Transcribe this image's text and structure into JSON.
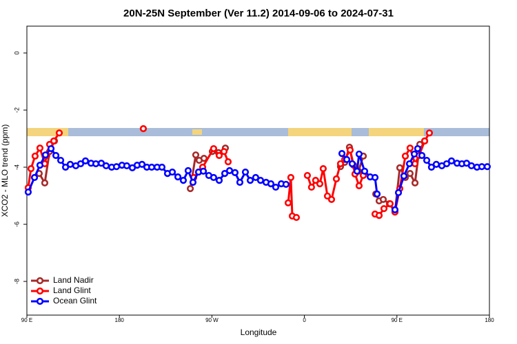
{
  "chart_data": {
    "type": "line",
    "title": "20N-25N September (Ver 11.2)   2014-09-06 to 2024-07-31",
    "x_label": "Longitude",
    "y_label": "XCO2 - MLO trend (ppm)",
    "xlim": [
      90,
      540
    ],
    "xticks": [
      {
        "value": 90,
        "label": "90 E"
      },
      180,
      {
        "value": 270,
        "label": "90 W"
      },
      {
        "value": 360,
        "label": "0"
      },
      {
        "value": 450,
        "label": "90 E"
      },
      {
        "value": 540,
        "label": "180"
      }
    ],
    "ylim": [
      -9.18,
      0.94
    ],
    "yticks": [
      0,
      -2,
      -4,
      -6,
      -8
    ],
    "grid": false,
    "legend": "bottom left",
    "series": [
      {
        "name": "Land Nadir",
        "color": "#a52a2a",
        "x": [
          102,
          107.4,
          112.1,
          116.8,
          null,
          249,
          254.3,
          257.6,
          262.3,
          null,
          270.4,
          276.4,
          283.1,
          null,
          395.1,
          399.2,
          403.8,
          407.9,
          412.6,
          417.3,
          null,
          429.4,
          432.7,
          436.7,
          442.7,
          448.1,
          452.8,
          458.2,
          462.8,
          467.6,
          472.3,
          477
        ],
        "values": [
          -4.22,
          -4.55,
          -3.45,
          -3.08,
          null,
          -4.75,
          -3.57,
          -3.76,
          -3.69,
          null,
          -3.45,
          -3.49,
          -3.33,
          null,
          -3.98,
          -3.83,
          -3.3,
          -3.93,
          -4.14,
          -3.61,
          null,
          -4.94,
          -5.18,
          -5.13,
          -5.28,
          -5.57,
          -4.02,
          -4.36,
          -4.22,
          -4.55,
          -3.2,
          -3.08
        ]
      },
      {
        "name": "Land Glint",
        "color": "#ff0000",
        "x": [
          91.3,
          94,
          98,
          102.7,
          107.4,
          109.4,
          112.1,
          116.2,
          121.5,
          null,
          203.3,
          null,
          252.3,
          257,
          261,
          271.7,
          277.1,
          281.8,
          285.8,
          null,
          344.2,
          346.8,
          348.2,
          352.2,
          null,
          362.9,
          366.9,
          370.9,
          375,
          378.3,
          382.4,
          386.4,
          391.1,
          395.1,
          399.2,
          404.5,
          409.2,
          413.2,
          417.3,
          null,
          428.7,
          432.7,
          437.4,
          443.4,
          448.1,
          452.8,
          458.2,
          462.8,
          467.6,
          471.6,
          477,
          481.6
        ],
        "values": [
          -4.72,
          -4.05,
          -3.61,
          -3.33,
          -3.88,
          -3.59,
          -3.2,
          -3.08,
          -2.8,
          null,
          -2.65,
          null,
          -4.36,
          -4.17,
          -4.0,
          -3.35,
          -3.59,
          -3.45,
          -3.81,
          null,
          -5.25,
          -4.36,
          -5.71,
          -5.76,
          null,
          -4.29,
          -4.7,
          -4.46,
          -4.58,
          -4.05,
          -5.01,
          -5.13,
          -4.41,
          -3.88,
          -3.73,
          -3.4,
          -4.24,
          -4.65,
          -4.29,
          null,
          -5.64,
          -5.69,
          -5.45,
          -5.28,
          -5.57,
          -4.75,
          -3.61,
          -3.33,
          -3.88,
          -3.59,
          -3.08,
          -2.8
        ]
      },
      {
        "name": "Ocean Glint",
        "color": "#0000ff",
        "x": [
          91.3,
          97.4,
          102.7,
          108.1,
          113.5,
          118.2,
          122.9,
          127.6,
          132.2,
          137.6,
          142.3,
          147,
          152.4,
          157.1,
          162.4,
          167.1,
          172.5,
          177.2,
          182.5,
          187.2,
          192.6,
          197.3,
          202,
          206.7,
          211.4,
          216.7,
          221.4,
          226.8,
          231.5,
          236.9,
          242.2,
          246.9,
          251.6,
          257,
          261.7,
          267,
          271.7,
          277.1,
          282.5,
          287.2,
          292.5,
          297.2,
          302.6,
          307.3,
          312.6,
          317.3,
          322.7,
          327.4,
          332.1,
          337.5,
          342.1,
          null,
          396.5,
          401.2,
          406.5,
          411.2,
          413.2,
          418.6,
          424,
          428.7,
          430.7,
          null,
          448.1,
          451.5,
          456.8,
          462.2,
          466.9,
          470.2,
          474.3,
          479,
          483.6,
          488.3,
          493.7,
          498.4,
          503.1,
          508.5,
          513.2,
          517.8,
          522.5,
          527.9,
          532.6,
          537.9
        ],
        "values": [
          -4.87,
          -4.36,
          -3.93,
          -3.57,
          -3.35,
          -3.59,
          -3.76,
          -4.0,
          -3.9,
          -3.95,
          -3.88,
          -3.78,
          -3.86,
          -3.88,
          -3.86,
          -3.95,
          -4.0,
          -3.98,
          -3.93,
          -3.95,
          -4.02,
          -3.93,
          -3.9,
          -4.0,
          -4.0,
          -4.0,
          -4.0,
          -4.22,
          -4.17,
          -4.34,
          -4.46,
          -4.12,
          -4.53,
          -4.17,
          -4.14,
          -4.29,
          -4.36,
          -4.46,
          -4.22,
          -4.12,
          -4.19,
          -4.53,
          -4.17,
          -4.46,
          -4.36,
          -4.46,
          -4.53,
          -4.58,
          -4.7,
          -4.58,
          -4.6,
          null,
          -3.52,
          -3.73,
          -3.88,
          -4.14,
          -3.54,
          -4.14,
          -4.34,
          -4.36,
          -4.94,
          null,
          -5.49,
          -4.89,
          -4.31,
          -3.88,
          -3.54,
          -3.35,
          -3.59,
          -3.76,
          -4.0,
          -3.9,
          -3.95,
          -3.88,
          -3.78,
          -3.86,
          -3.88,
          -3.86,
          -3.95,
          -4.0,
          -3.98,
          -3.98
        ]
      }
    ]
  }
}
